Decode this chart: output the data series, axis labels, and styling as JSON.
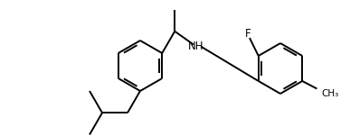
{
  "bg_color": "#ffffff",
  "line_color": "#000000",
  "line_width": 1.4,
  "font_size": 8.5,
  "figsize": [
    3.87,
    1.51
  ],
  "dpi": 100,
  "xlim": [
    0,
    387
  ],
  "ylim": [
    0,
    151
  ]
}
